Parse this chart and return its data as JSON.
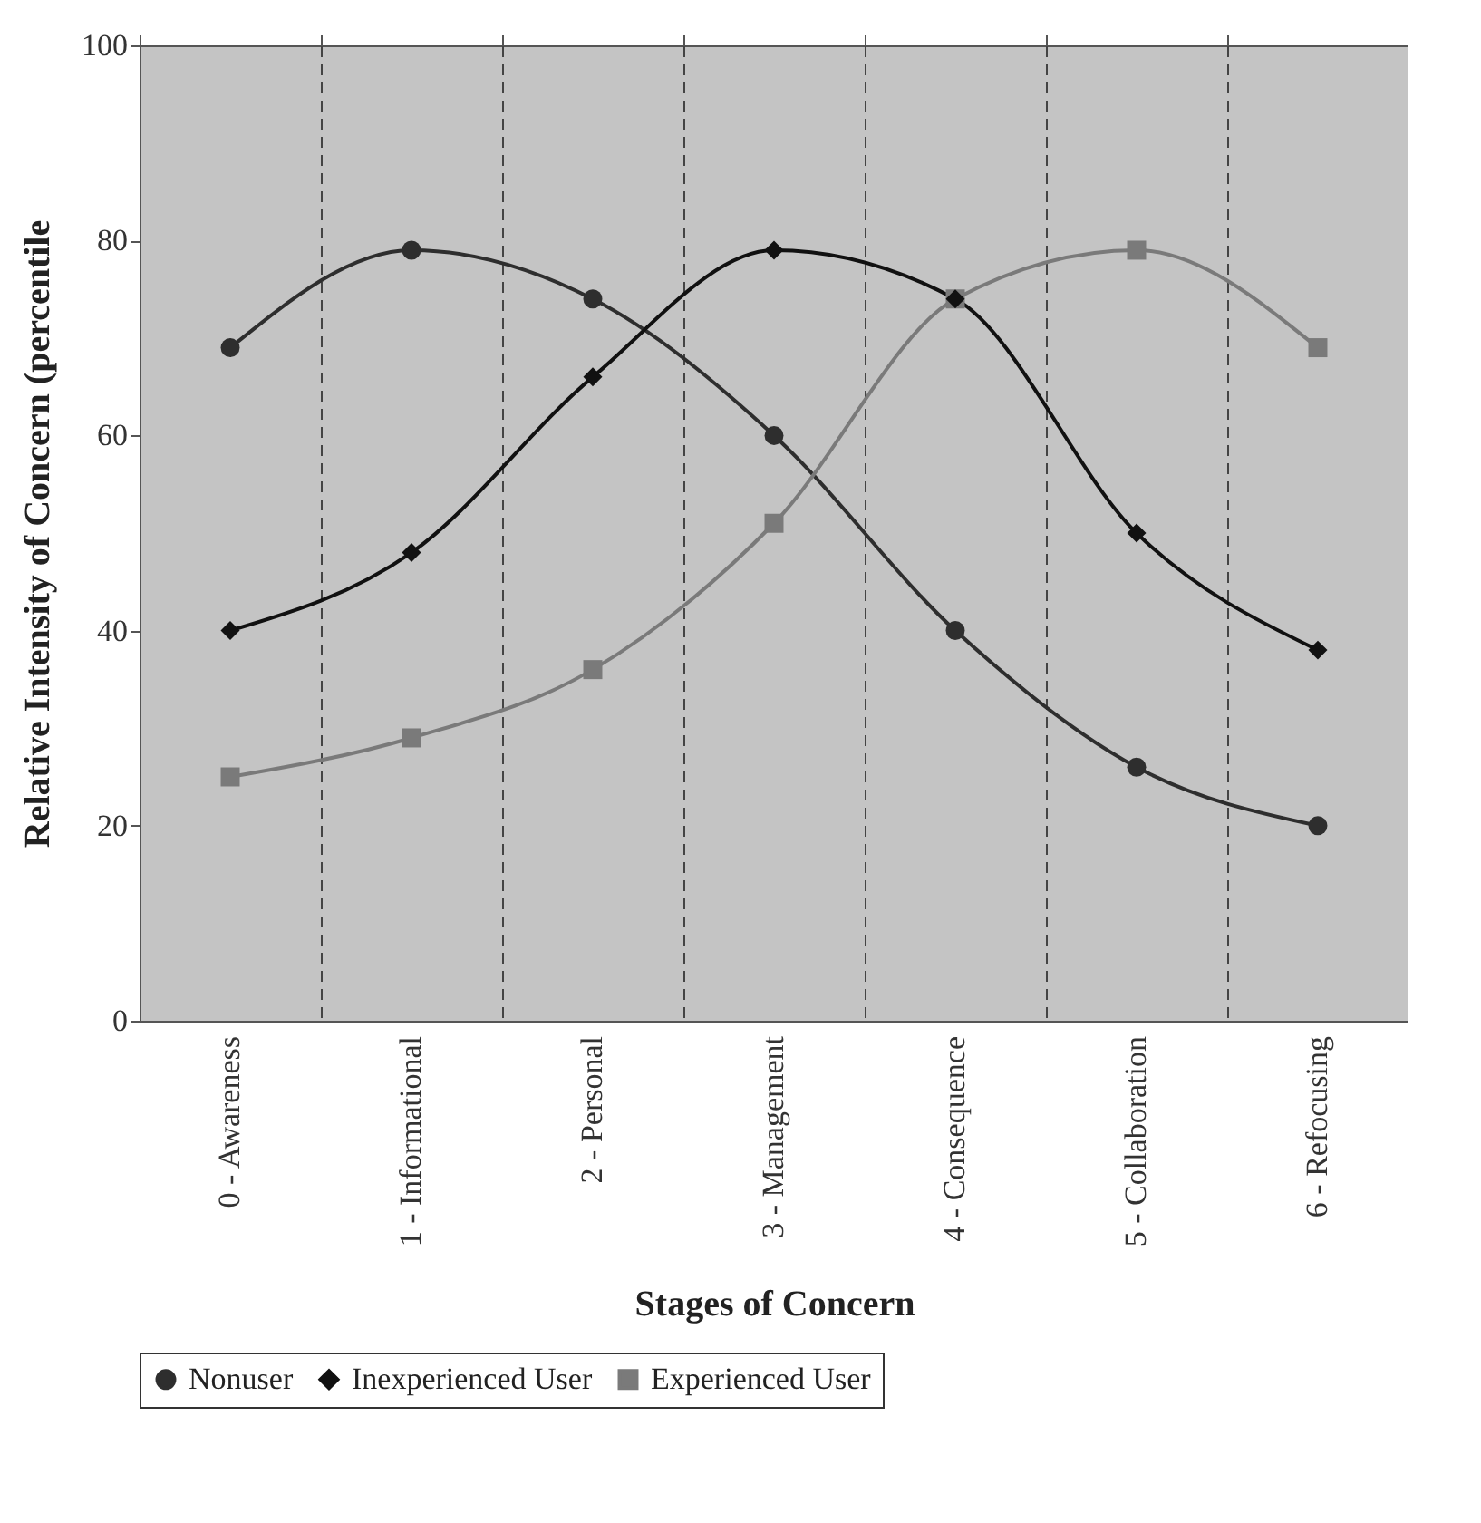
{
  "chart_data": {
    "type": "line",
    "xlabel": "Stages of Concern",
    "ylabel": "Relative Intensity of Concern (percentile",
    "categories": [
      "0 - Awareness",
      "1 - Informational",
      "2 - Personal",
      "3 - Management",
      "4 - Consequence",
      "5 - Collaboration",
      "6 - Refocusing"
    ],
    "series": [
      {
        "name": "Nonuser",
        "color": "#2e2e2e",
        "marker": "circle",
        "values": [
          69,
          79,
          74,
          60,
          40,
          26,
          20
        ]
      },
      {
        "name": "Inexperienced User",
        "color": "#111111",
        "marker": "diamond",
        "values": [
          40,
          48,
          66,
          79,
          74,
          50,
          38
        ]
      },
      {
        "name": "Experienced User",
        "color": "#7a7a7a",
        "marker": "square",
        "values": [
          25,
          29,
          36,
          51,
          74,
          79,
          69
        ]
      }
    ],
    "ylim": [
      0,
      100
    ],
    "yticks": [
      0,
      20,
      40,
      60,
      80,
      100
    ],
    "grid": "x",
    "legend": "bottom",
    "line_style": "solid"
  }
}
